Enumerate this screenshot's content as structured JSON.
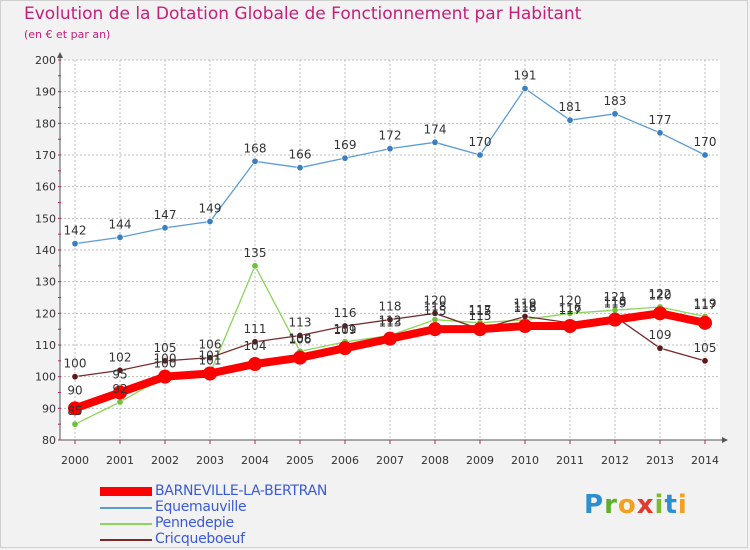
{
  "header": {
    "title": "Evolution de la Dotation Globale de Fonctionnement par Habitant",
    "subtitle": "(en € et par an)"
  },
  "logo": {
    "text": "Proxiti",
    "letters": [
      "P",
      "r",
      "o",
      "x",
      "i",
      "t",
      "i"
    ]
  },
  "colors": {
    "title": "#c71e78",
    "legend_text": "#3a5ad9",
    "axis": "#555555",
    "grid": "#bfbfbf",
    "tick_marks": "#c71e78"
  },
  "chart_data": {
    "type": "line",
    "x": [
      2000,
      2001,
      2002,
      2003,
      2004,
      2005,
      2006,
      2007,
      2008,
      2009,
      2010,
      2011,
      2012,
      2013,
      2014
    ],
    "ylim": [
      80,
      200
    ],
    "yticks": [
      80,
      90,
      100,
      110,
      120,
      130,
      140,
      150,
      160,
      170,
      180,
      190,
      200
    ],
    "grid": true,
    "legend_position": "bottom-left",
    "series": [
      {
        "name": "BARNEVILLE-LA-BERTRAN",
        "color": "#ff0000",
        "emphasis": true,
        "values": [
          90,
          95,
          100,
          101,
          104,
          106,
          109,
          112,
          115,
          115,
          116,
          116,
          118,
          120,
          117
        ],
        "labels": [
          "90",
          "95",
          "100",
          "101",
          "104",
          "106",
          "109",
          "112",
          "115",
          "115",
          "116",
          "116",
          "118",
          "120",
          "117"
        ]
      },
      {
        "name": "Equemauville",
        "color": "#5b9bd5",
        "marker": "#3c7fc0",
        "values": [
          142,
          144,
          147,
          149,
          168,
          166,
          169,
          172,
          174,
          170,
          191,
          181,
          183,
          177,
          170
        ],
        "labels": [
          "142",
          "144",
          "147",
          "149",
          "168",
          "166",
          "169",
          "172",
          "174",
          "170",
          "191",
          "181",
          "183",
          "177",
          "170"
        ]
      },
      {
        "name": "Pennedepie",
        "color": "#8bd65a",
        "marker": "#6cc23a",
        "values": [
          85,
          92,
          100,
          101,
          135,
          108,
          111,
          113,
          118,
          117,
          118,
          120,
          121,
          122,
          119
        ],
        "labels": [
          "85",
          "92",
          "100",
          "101",
          "135",
          "108",
          "111",
          "113",
          "118",
          "117",
          "118",
          "120",
          "121",
          "122",
          "119"
        ]
      },
      {
        "name": "Cricqueboeuf",
        "color": "#7a2a2a",
        "marker": "#5e1a1a",
        "values": [
          100,
          102,
          105,
          106,
          111,
          113,
          116,
          118,
          120,
          115,
          119,
          117,
          119,
          109,
          105
        ],
        "labels": [
          "100",
          "102",
          "105",
          "106",
          "111",
          "113",
          "116",
          "118",
          "120",
          "115",
          "119",
          "117",
          "119",
          "109",
          "105"
        ]
      }
    ]
  }
}
